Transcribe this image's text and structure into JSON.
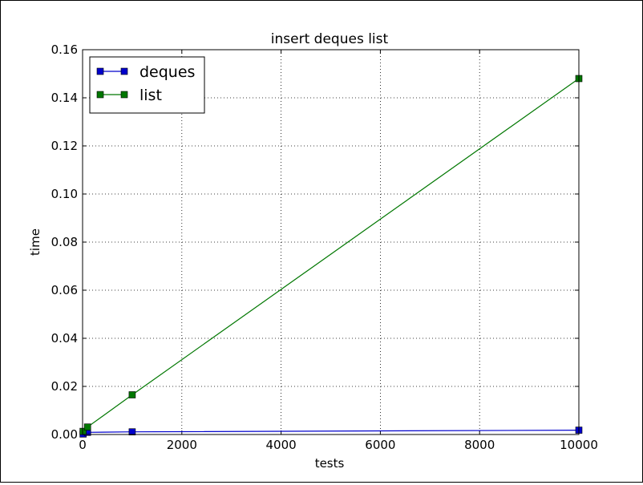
{
  "chart_data": {
    "type": "line",
    "title": "insert deques list",
    "xlabel": "tests",
    "ylabel": "time",
    "xlim": [
      0,
      10000
    ],
    "ylim": [
      0,
      0.16
    ],
    "xticks": [
      0,
      2000,
      4000,
      6000,
      8000,
      10000
    ],
    "yticks": [
      0.0,
      0.02,
      0.04,
      0.06,
      0.08,
      0.1,
      0.12,
      0.14,
      0.16
    ],
    "xtick_labels": [
      "0",
      "2000",
      "4000",
      "6000",
      "8000",
      "10000"
    ],
    "ytick_labels": [
      "0.00",
      "0.02",
      "0.04",
      "0.06",
      "0.08",
      "0.10",
      "0.12",
      "0.14",
      "0.16"
    ],
    "grid": true,
    "legend_position": "top-left",
    "series": [
      {
        "name": "deques",
        "color": "#0000cc",
        "marker": "square",
        "x": [
          10,
          100,
          1000,
          10000
        ],
        "y": [
          0.0002,
          0.0009,
          0.0011,
          0.0018
        ]
      },
      {
        "name": "list",
        "color": "#007700",
        "marker": "square",
        "x": [
          10,
          100,
          1000,
          10000
        ],
        "y": [
          0.0013,
          0.0031,
          0.0165,
          0.148
        ]
      }
    ]
  }
}
